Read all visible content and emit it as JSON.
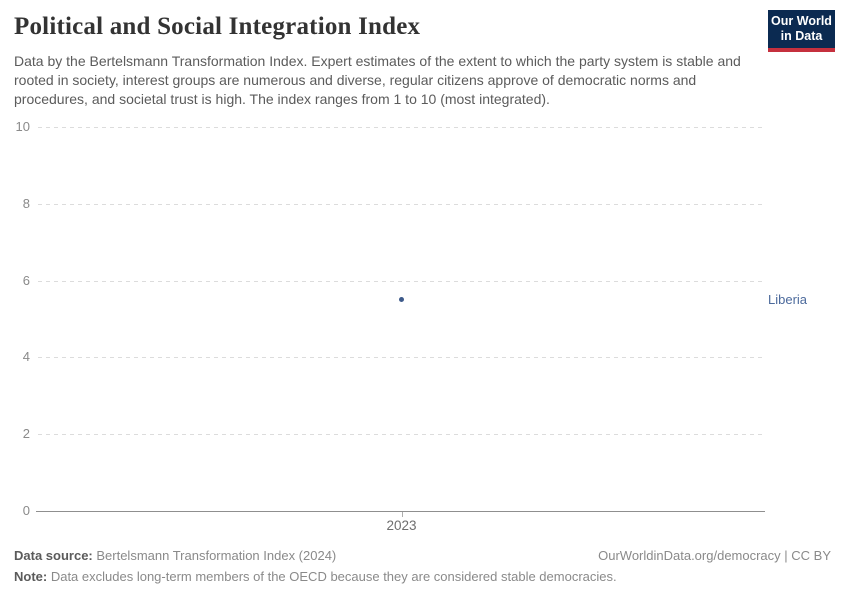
{
  "header": {
    "title": "Political and Social Integration Index",
    "subtitle": "Data by the Bertelsmann Transformation Index. Expert estimates of the extent to which the party system is stable and rooted in society, interest groups are numerous and diverse, regular citizens approve of democratic norms and procedures, and societal trust is high. The index ranges from 1 to 10 (most integrated).",
    "logo": {
      "line1": "Our World",
      "line2": "in Data",
      "bg_color": "#0b2a51",
      "accent_color": "#c5303e"
    }
  },
  "chart_data": {
    "type": "scatter",
    "title": "Political and Social Integration Index",
    "x": [
      2023
    ],
    "x_tick_labels": [
      "2023"
    ],
    "series": [
      {
        "name": "Liberia",
        "values": [
          5.5
        ],
        "color": "#3d5a8a",
        "label_color": "#4c6a9c"
      }
    ],
    "ylim": [
      0,
      10
    ],
    "y_ticks": [
      0,
      2,
      4,
      6,
      8,
      10
    ],
    "grid": "horizontal-dashed",
    "gridline_color": "#dcdcdc",
    "axis_color": "#8f8f8f",
    "legend_position": "right-of-plot"
  },
  "footer": {
    "source_label": "Data source:",
    "source_value": " Bertelsmann Transformation Index (2024)",
    "attribution": "OurWorldinData.org/democracy | CC BY",
    "note_label": "Note:",
    "note_value": " Data excludes long-term members of the OECD because they are considered stable democracies."
  }
}
